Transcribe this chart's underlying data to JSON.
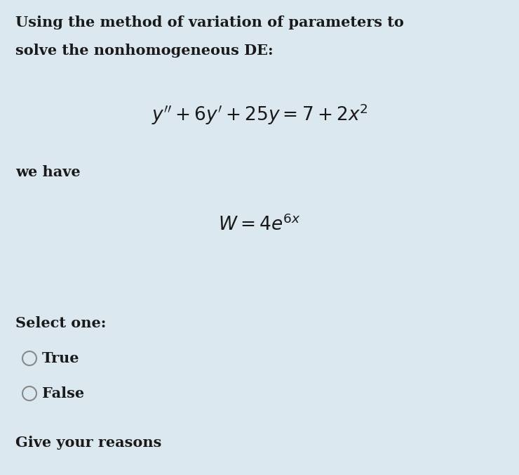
{
  "background_color": "#dce8ef",
  "title_line1": "Using the method of variation of parameters to",
  "title_line2": "solve the nonhomogeneous DE:",
  "we_have": "we have",
  "select_one": "Select one:",
  "option_true": "True",
  "option_false": "False",
  "footer": "Give your reasons",
  "text_color": "#1a1a1a",
  "body_fontsize": 15,
  "eq_fontsize": 19
}
